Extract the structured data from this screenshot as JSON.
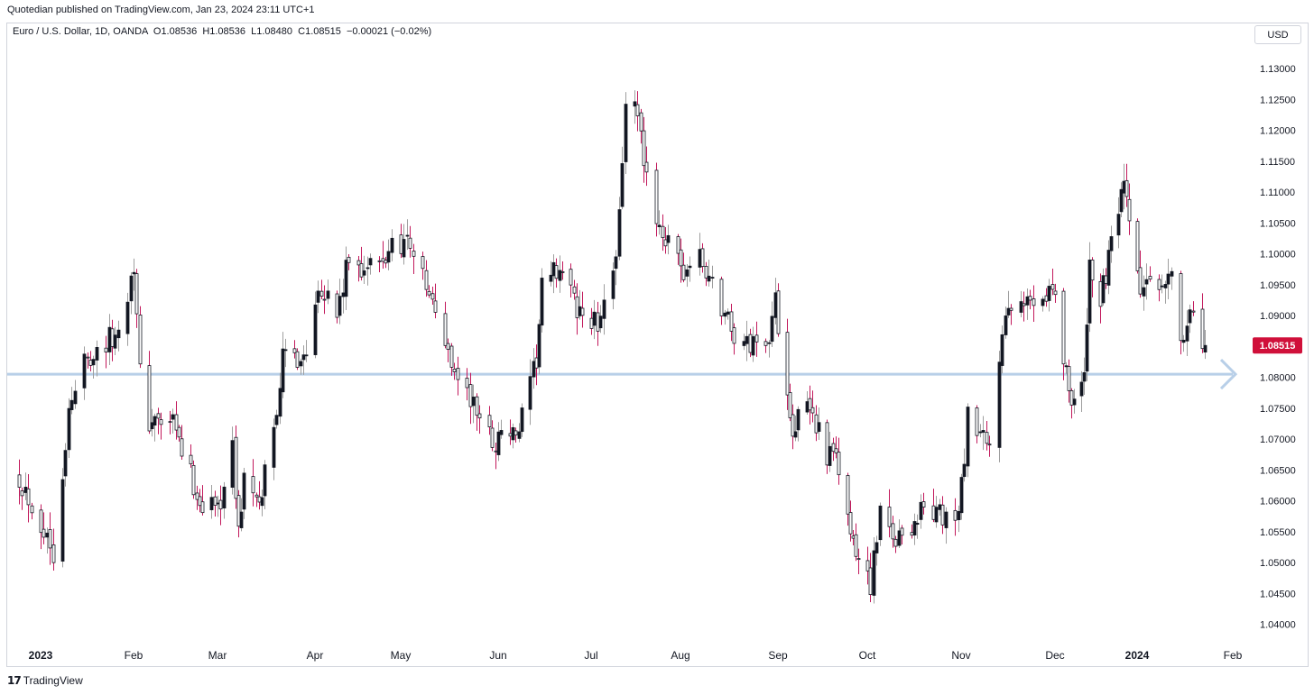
{
  "header": {
    "published": "Quotedian published on TradingView.com, Jan 23, 2024 23:11 UTC+1"
  },
  "legend": {
    "text": "Euro / U.S. Dollar, 1D, OANDA  O1.08536  H1.08536  L1.08480  C1.08515  −0.00021 (−0.02%)"
  },
  "currency_button": "USD",
  "brand": {
    "mark": "17",
    "name": "TradingView"
  },
  "colors": {
    "up_body": "#131722",
    "up_wick": "#9e9e9e",
    "down_body": "#ffffff",
    "down_wick": "#c2185b",
    "price_tag": "#d0103a",
    "hline": "#b8cfe8"
  },
  "chart_data": {
    "type": "candlestick",
    "symbol": "EURUSD",
    "interval": "1D",
    "ylim": [
      1.0375,
      1.1325
    ],
    "y_ticks": [
      "1.13000",
      "1.12500",
      "1.12000",
      "1.11500",
      "1.11000",
      "1.10500",
      "1.10000",
      "1.09500",
      "1.09000",
      "1.08500",
      "1.08000",
      "1.07500",
      "1.07000",
      "1.06500",
      "1.06000",
      "1.05500",
      "1.05000",
      "1.04500",
      "1.04000"
    ],
    "x_ticks": [
      {
        "label": "2023",
        "date": "2023-01-02",
        "bold": true
      },
      {
        "label": "Feb",
        "date": "2023-02-01",
        "bold": false
      },
      {
        "label": "Mar",
        "date": "2023-03-01",
        "bold": false
      },
      {
        "label": "Apr",
        "date": "2023-04-03",
        "bold": false
      },
      {
        "label": "May",
        "date": "2023-05-01",
        "bold": false
      },
      {
        "label": "Jun",
        "date": "2023-06-01",
        "bold": false
      },
      {
        "label": "Jul",
        "date": "2023-07-03",
        "bold": false
      },
      {
        "label": "Aug",
        "date": "2023-08-01",
        "bold": false
      },
      {
        "label": "Sep",
        "date": "2023-09-01",
        "bold": false
      },
      {
        "label": "Oct",
        "date": "2023-10-02",
        "bold": false
      },
      {
        "label": "Nov",
        "date": "2023-11-01",
        "bold": false
      },
      {
        "label": "Dec",
        "date": "2023-12-01",
        "bold": false
      },
      {
        "label": "2024",
        "date": "2024-01-01",
        "bold": true
      },
      {
        "label": "Feb",
        "date": "2024-02-01",
        "bold": false
      }
    ],
    "last_price": "1.08515",
    "horizontal_line": 1.0805,
    "anchors": [
      [
        "2022-12-26",
        1.064
      ],
      [
        "2023-01-06",
        1.052
      ],
      [
        "2023-01-11",
        1.074
      ],
      [
        "2023-01-16",
        1.083
      ],
      [
        "2023-01-27",
        1.087
      ],
      [
        "2023-02-01",
        1.099
      ],
      [
        "2023-02-03",
        1.08
      ],
      [
        "2023-02-06",
        1.073
      ],
      [
        "2023-02-14",
        1.072
      ],
      [
        "2023-02-23",
        1.06
      ],
      [
        "2023-03-01",
        1.059
      ],
      [
        "2023-03-06",
        1.068
      ],
      [
        "2023-03-08",
        1.055
      ],
      [
        "2023-03-10",
        1.064
      ],
      [
        "2023-03-15",
        1.058
      ],
      [
        "2023-03-17",
        1.065
      ],
      [
        "2023-03-20",
        1.072
      ],
      [
        "2023-03-23",
        1.083
      ],
      [
        "2023-03-31",
        1.084
      ],
      [
        "2023-04-04",
        1.096
      ],
      [
        "2023-04-10",
        1.09
      ],
      [
        "2023-04-14",
        1.099
      ],
      [
        "2023-04-18",
        1.098
      ],
      [
        "2023-04-25",
        1.098
      ],
      [
        "2023-04-28",
        1.102
      ],
      [
        "2023-05-04",
        1.102
      ],
      [
        "2023-05-12",
        1.09
      ],
      [
        "2023-05-19",
        1.08
      ],
      [
        "2023-05-31",
        1.069
      ],
      [
        "2023-06-02",
        1.072
      ],
      [
        "2023-06-07",
        1.07
      ],
      [
        "2023-06-12",
        1.078
      ],
      [
        "2023-06-14",
        1.083
      ],
      [
        "2023-06-16",
        1.094
      ],
      [
        "2023-06-22",
        1.098
      ],
      [
        "2023-06-28",
        1.091
      ],
      [
        "2023-07-06",
        1.088
      ],
      [
        "2023-07-11",
        1.101
      ],
      [
        "2023-07-14",
        1.123
      ],
      [
        "2023-07-18",
        1.123
      ],
      [
        "2023-07-20",
        1.113
      ],
      [
        "2023-07-25",
        1.105
      ],
      [
        "2023-07-28",
        1.101
      ],
      [
        "2023-08-01",
        1.097
      ],
      [
        "2023-08-07",
        1.099
      ],
      [
        "2023-08-11",
        1.095
      ],
      [
        "2023-08-18",
        1.087
      ],
      [
        "2023-08-22",
        1.085
      ],
      [
        "2023-08-29",
        1.087
      ],
      [
        "2023-08-31",
        1.092
      ],
      [
        "2023-09-06",
        1.072
      ],
      [
        "2023-09-12",
        1.075
      ],
      [
        "2023-09-18",
        1.068
      ],
      [
        "2023-09-22",
        1.065
      ],
      [
        "2023-09-27",
        1.052
      ],
      [
        "2023-10-03",
        1.047
      ],
      [
        "2023-10-06",
        1.057
      ],
      [
        "2023-10-12",
        1.054
      ],
      [
        "2023-10-16",
        1.056
      ],
      [
        "2023-10-20",
        1.059
      ],
      [
        "2023-10-26",
        1.057
      ],
      [
        "2023-10-31",
        1.057
      ],
      [
        "2023-11-03",
        1.073
      ],
      [
        "2023-11-07",
        1.07
      ],
      [
        "2023-11-10",
        1.068
      ],
      [
        "2023-11-14",
        1.088
      ],
      [
        "2023-11-21",
        1.092
      ],
      [
        "2023-11-24",
        1.093
      ],
      [
        "2023-11-30",
        1.095
      ],
      [
        "2023-12-06",
        1.078
      ],
      [
        "2023-12-08",
        1.077
      ],
      [
        "2023-12-12",
        1.079
      ],
      [
        "2023-12-14",
        1.099
      ],
      [
        "2023-12-18",
        1.092
      ],
      [
        "2023-12-22",
        1.101
      ],
      [
        "2023-12-27",
        1.11
      ],
      [
        "2024-01-02",
        1.094
      ],
      [
        "2024-01-05",
        1.094
      ],
      [
        "2024-01-10",
        1.097
      ],
      [
        "2024-01-12",
        1.095
      ],
      [
        "2024-01-15",
        1.088
      ],
      [
        "2024-01-19",
        1.089
      ],
      [
        "2024-01-22",
        1.0855
      ],
      [
        "2024-01-23",
        1.08515
      ]
    ]
  }
}
